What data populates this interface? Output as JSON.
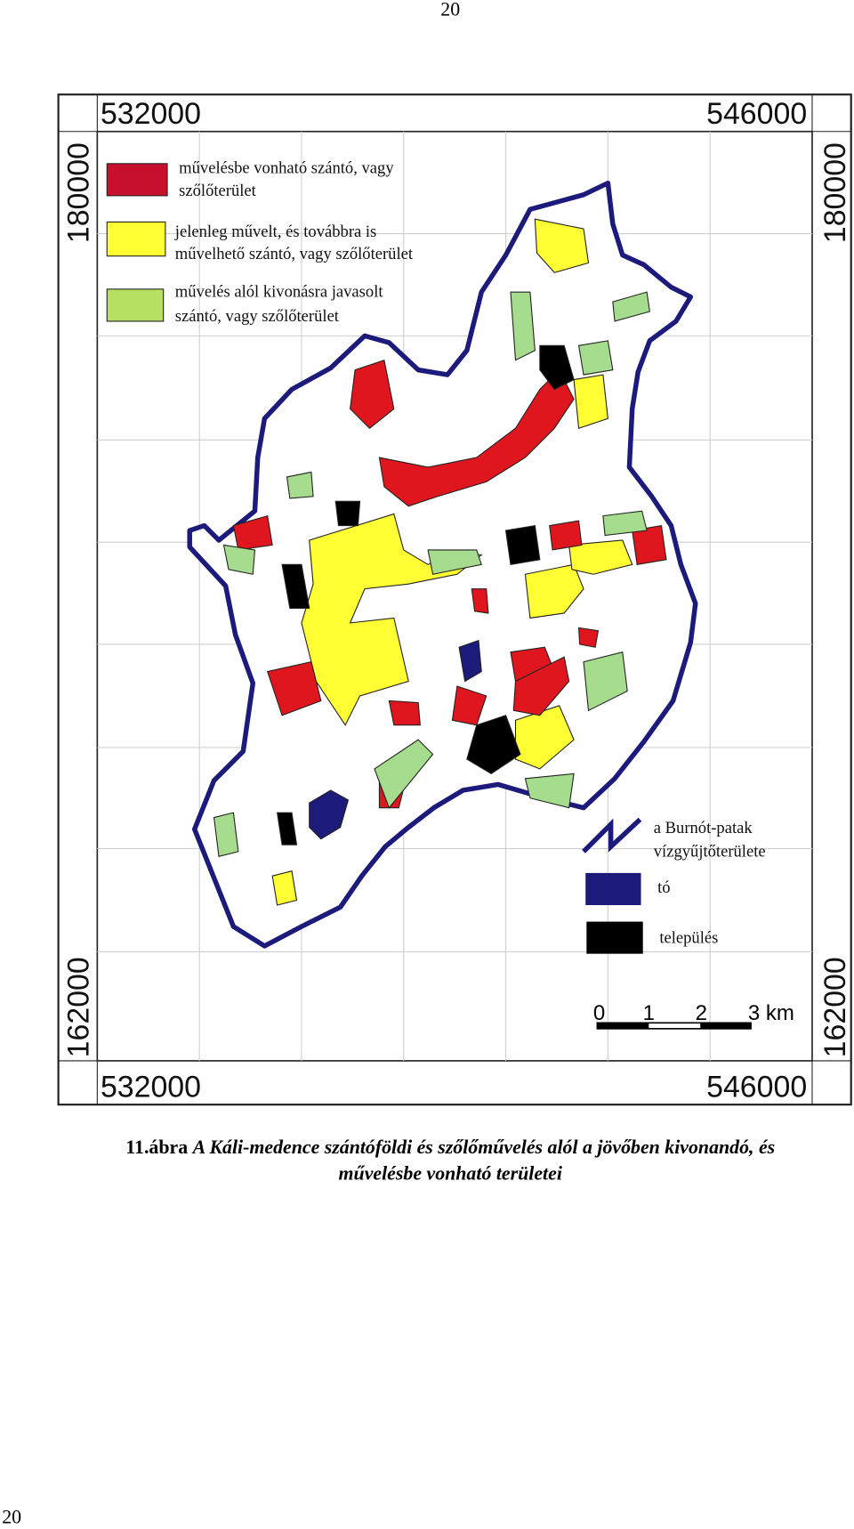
{
  "page_number_top": "20",
  "map": {
    "coordinates": {
      "top_left": "532000",
      "top_right": "546000",
      "bottom_left": "532000",
      "bottom_right": "546000",
      "left_top": "180000",
      "right_top": "180000",
      "left_bottom": "162000",
      "right_bottom": "162000"
    },
    "legend_top": [
      {
        "lines": [
          "művelésbe vonható szántó, vagy",
          "szőlőterület"
        ]
      },
      {
        "lines": [
          "jelenleg művelt, és továbbra is",
          "művelhető szántó, vagy szőlőterület"
        ]
      },
      {
        "lines": [
          "művelés alól kivonásra javasolt",
          "szántó, vagy szőlőterület"
        ]
      }
    ],
    "legend_bottom": [
      {
        "lines": [
          "a Burnót-patak",
          "vízgyűjtőterülete"
        ]
      },
      {
        "lines": [
          "tó"
        ]
      },
      {
        "lines": [
          "település"
        ]
      }
    ],
    "scale_bar": [
      "0",
      "1",
      "2",
      "3 km"
    ]
  },
  "caption": {
    "label": "11.ábra",
    "lines": [
      "A Káli-medence szántóföldi és szőlőművelés alól a jövőben kivonandó, és",
      "művelésbe vonható területei"
    ]
  },
  "page_number_bottom": "20"
}
